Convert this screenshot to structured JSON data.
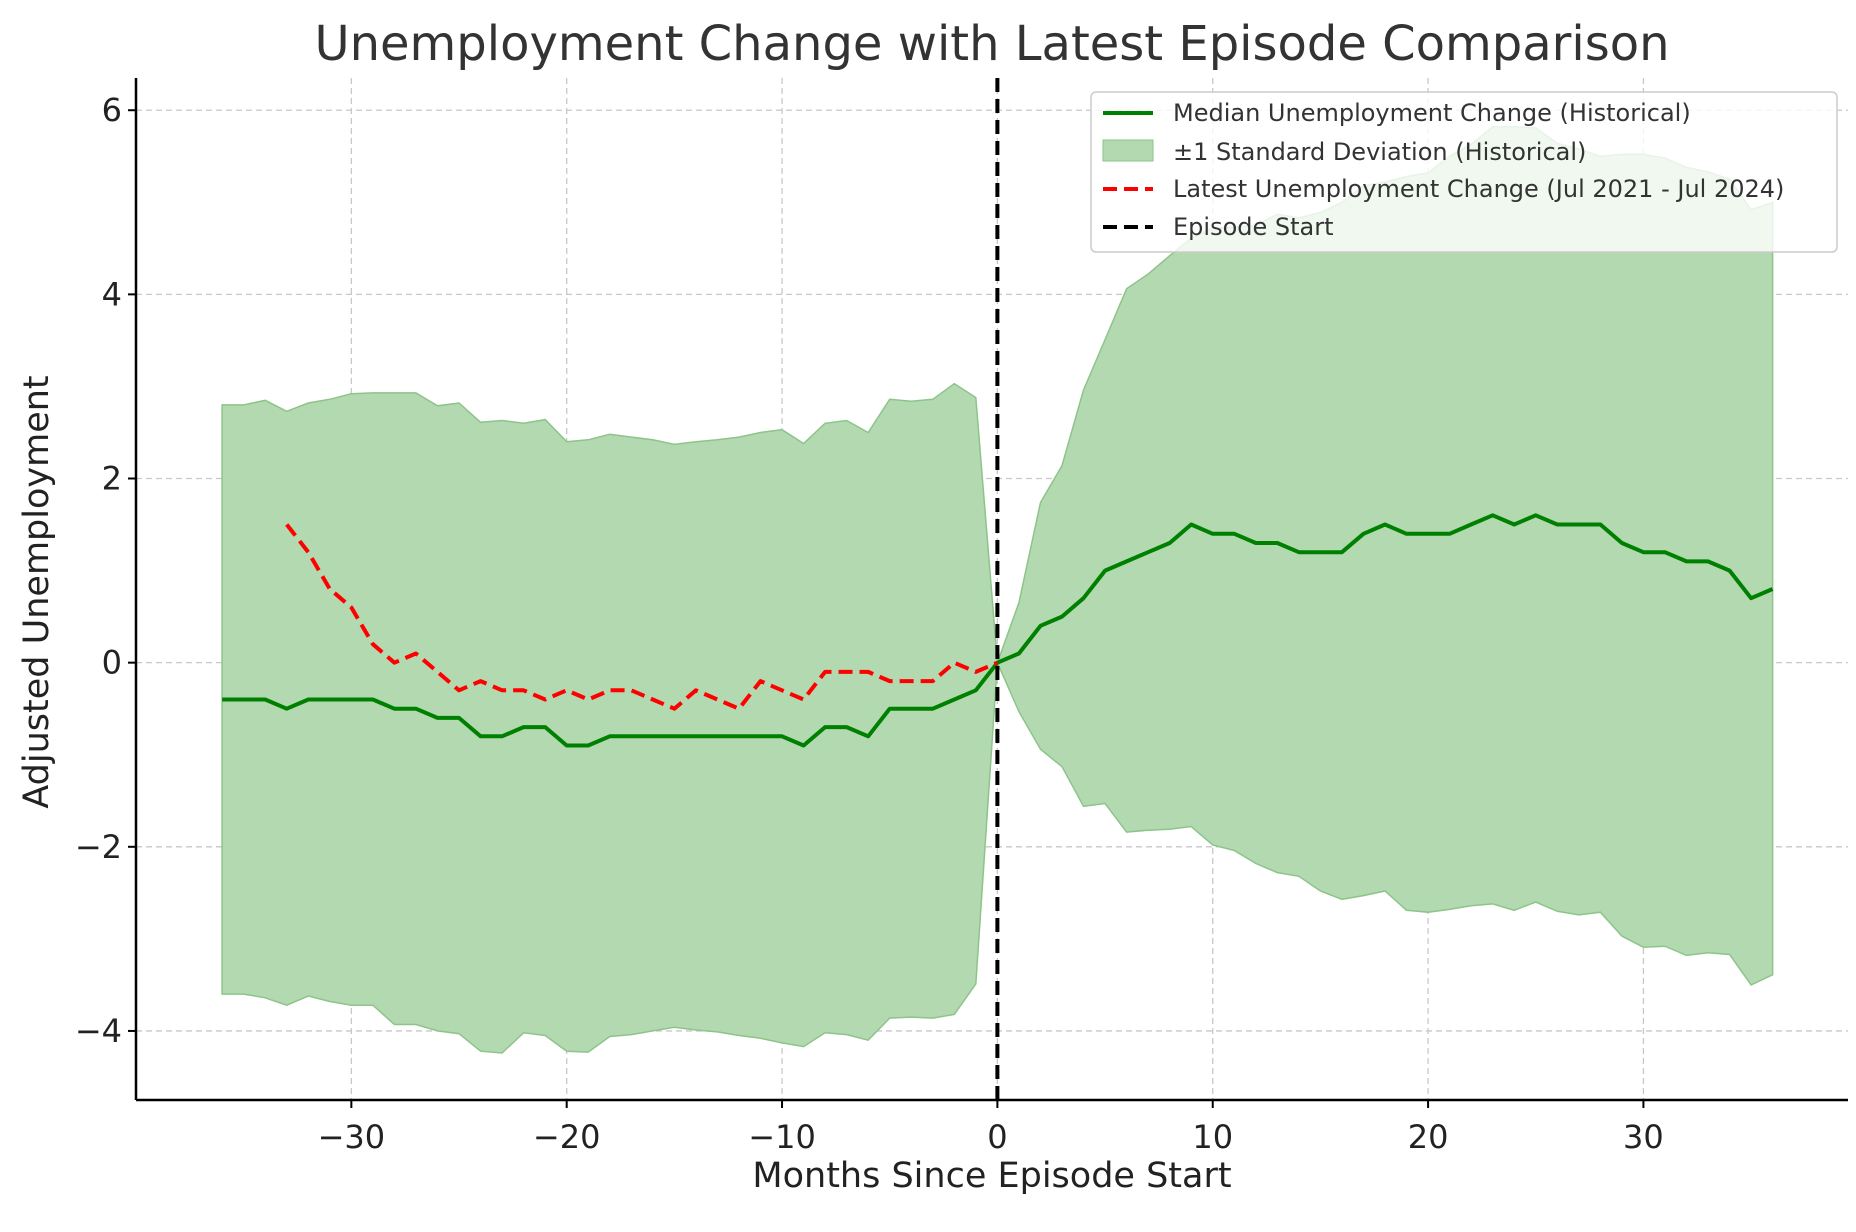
{
  "chart_data": {
    "type": "line",
    "title": "Unemployment Change with Latest Episode Comparison",
    "xlabel": "Months Since Episode Start",
    "ylabel": "Adjusted Unemployment",
    "xlim": [
      -40,
      39.5
    ],
    "ylim": [
      -4.75,
      6.35
    ],
    "xticks": [
      -30,
      -20,
      -10,
      0,
      10,
      20,
      30
    ],
    "yticks": [
      -4,
      -2,
      0,
      2,
      4,
      6
    ],
    "xtick_labels": [
      "−30",
      "−20",
      "−10",
      "0",
      "10",
      "20",
      "30"
    ],
    "ytick_labels": [
      "−4",
      "−2",
      "0",
      "2",
      "4",
      "6"
    ],
    "grid": true,
    "legend_position": "top-right",
    "x": [
      -36,
      -35,
      -34,
      -33,
      -32,
      -31,
      -30,
      -29,
      -28,
      -27,
      -26,
      -25,
      -24,
      -23,
      -22,
      -21,
      -20,
      -19,
      -18,
      -17,
      -16,
      -15,
      -14,
      -13,
      -12,
      -11,
      -10,
      -9,
      -8,
      -7,
      -6,
      -5,
      -4,
      -3,
      -2,
      -1,
      0,
      1,
      2,
      3,
      4,
      5,
      6,
      7,
      8,
      9,
      10,
      11,
      12,
      13,
      14,
      15,
      16,
      17,
      18,
      19,
      20,
      21,
      22,
      23,
      24,
      25,
      26,
      27,
      28,
      29,
      30,
      31,
      32,
      33,
      34,
      35,
      36
    ],
    "series": [
      {
        "name": "Median Unemployment Change (Historical)",
        "style": "solid",
        "color": "#008000",
        "values": [
          -0.4,
          -0.4,
          -0.4,
          -0.5,
          -0.4,
          -0.4,
          -0.4,
          -0.4,
          -0.5,
          -0.5,
          -0.6,
          -0.6,
          -0.8,
          -0.8,
          -0.7,
          -0.7,
          -0.9,
          -0.9,
          -0.8,
          -0.8,
          -0.8,
          -0.8,
          -0.8,
          -0.8,
          -0.8,
          -0.8,
          -0.8,
          -0.9,
          -0.7,
          -0.7,
          -0.8,
          -0.5,
          -0.5,
          -0.5,
          -0.4,
          -0.3,
          0.0,
          0.1,
          0.4,
          0.5,
          0.7,
          1.0,
          1.1,
          1.2,
          1.3,
          1.5,
          1.4,
          1.4,
          1.3,
          1.3,
          1.2,
          1.2,
          1.2,
          1.4,
          1.5,
          1.4,
          1.4,
          1.4,
          1.5,
          1.6,
          1.5,
          1.6,
          1.5,
          1.5,
          1.5,
          1.3,
          1.2,
          1.2,
          1.1,
          1.1,
          1.0,
          0.7,
          0.8
        ]
      },
      {
        "name": "±1 Standard Deviation (Historical)",
        "style": "band",
        "color": "#b3d9b1",
        "upper": [
          2.8,
          2.8,
          2.85,
          2.73,
          2.82,
          2.86,
          2.92,
          2.93,
          2.93,
          2.93,
          2.79,
          2.82,
          2.61,
          2.63,
          2.6,
          2.64,
          2.4,
          2.42,
          2.48,
          2.45,
          2.42,
          2.37,
          2.4,
          2.42,
          2.45,
          2.5,
          2.53,
          2.38,
          2.6,
          2.63,
          2.5,
          2.86,
          2.84,
          2.86,
          3.03,
          2.88,
          0.0,
          0.65,
          1.74,
          2.14,
          2.96,
          3.51,
          4.06,
          4.22,
          4.42,
          4.61,
          4.72,
          4.73,
          4.75,
          4.87,
          4.83,
          4.89,
          5.0,
          5.18,
          5.22,
          5.28,
          5.32,
          5.5,
          5.63,
          5.82,
          5.82,
          5.81,
          5.64,
          5.58,
          5.5,
          5.52,
          5.52,
          5.48,
          5.38,
          5.33,
          5.25,
          4.92,
          5.0
        ],
        "lower": [
          -3.6,
          -3.6,
          -3.64,
          -3.72,
          -3.62,
          -3.68,
          -3.72,
          -3.72,
          -3.93,
          -3.93,
          -4.0,
          -4.03,
          -4.22,
          -4.24,
          -4.02,
          -4.05,
          -4.22,
          -4.23,
          -4.06,
          -4.04,
          -4.0,
          -3.96,
          -3.99,
          -4.01,
          -4.05,
          -4.08,
          -4.13,
          -4.17,
          -4.02,
          -4.04,
          -4.1,
          -3.86,
          -3.85,
          -3.86,
          -3.82,
          -3.49,
          0.0,
          -0.53,
          -0.94,
          -1.13,
          -1.56,
          -1.53,
          -1.84,
          -1.82,
          -1.81,
          -1.78,
          -1.98,
          -2.04,
          -2.18,
          -2.28,
          -2.32,
          -2.48,
          -2.57,
          -2.53,
          -2.48,
          -2.69,
          -2.71,
          -2.68,
          -2.64,
          -2.62,
          -2.69,
          -2.6,
          -2.7,
          -2.74,
          -2.71,
          -2.97,
          -3.09,
          -3.08,
          -3.18,
          -3.15,
          -3.17,
          -3.5,
          -3.39
        ]
      },
      {
        "name": "Latest Unemployment Change (Jul 2021 - Jul 2024)",
        "style": "dashed",
        "color": "#ff0000",
        "x": [
          -33,
          -32,
          -31,
          -30,
          -29,
          -28,
          -27,
          -26,
          -25,
          -24,
          -23,
          -22,
          -21,
          -20,
          -19,
          -18,
          -17,
          -16,
          -15,
          -14,
          -13,
          -12,
          -11,
          -10,
          -9,
          -8,
          -7,
          -6,
          -5,
          -4,
          -3,
          -2,
          -1,
          0
        ],
        "values": [
          1.5,
          1.2,
          0.8,
          0.6,
          0.2,
          0.0,
          0.1,
          -0.1,
          -0.3,
          -0.2,
          -0.3,
          -0.3,
          -0.4,
          -0.3,
          -0.4,
          -0.3,
          -0.3,
          -0.4,
          -0.5,
          -0.3,
          -0.4,
          -0.5,
          -0.2,
          -0.3,
          -0.4,
          -0.1,
          -0.1,
          -0.1,
          -0.2,
          -0.2,
          -0.2,
          0.0,
          -0.1,
          0.0
        ]
      },
      {
        "name": "Episode Start",
        "style": "vline",
        "color": "#000000",
        "xvalue": 0
      }
    ]
  }
}
